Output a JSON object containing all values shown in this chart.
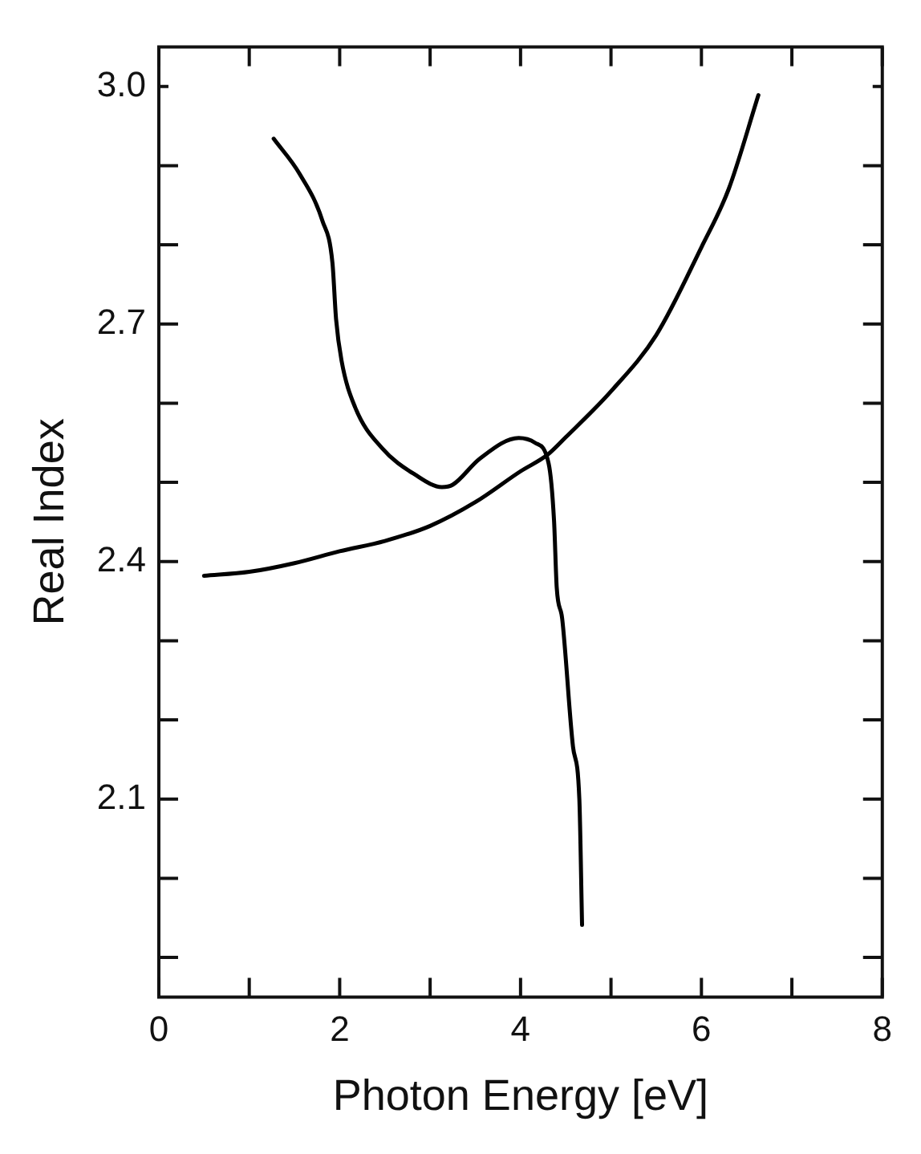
{
  "chart_data": {
    "type": "line",
    "xlabel": "Photon Energy [eV]",
    "ylabel": "Real Index",
    "xlim": [
      0,
      8
    ],
    "ylim": [
      1.85,
      3.05
    ],
    "xticks": [
      0,
      {
        "value": 1,
        "label": null
      },
      2,
      {
        "value": 3,
        "label": null
      },
      4,
      {
        "value": 5,
        "label": null
      },
      6,
      {
        "value": 7,
        "label": null
      },
      8
    ],
    "yticks": [
      {
        "value": 1.9,
        "label": null
      },
      {
        "value": 2.0,
        "label": null
      },
      2.1,
      {
        "value": 2.2,
        "label": null
      },
      {
        "value": 2.3,
        "label": null
      },
      2.4,
      {
        "value": 2.5,
        "label": null
      },
      {
        "value": 2.6,
        "label": null
      },
      2.7,
      {
        "value": 2.8,
        "label": null
      },
      {
        "value": 2.9,
        "label": null
      },
      {
        "value": 3.0,
        "label": "3.0"
      }
    ],
    "grid": false,
    "legend": false,
    "marker": "none",
    "line_style": "solid",
    "series": [
      {
        "color": "#000000",
        "x": [
          0.5,
          1,
          1.5,
          2,
          2.5,
          3,
          3.5,
          4,
          4.3,
          4.5,
          5,
          5.5,
          6,
          6.3,
          6.63
        ],
        "values": [
          2.382,
          2.387,
          2.398,
          2.413,
          2.426,
          2.445,
          2.475,
          2.514,
          2.535,
          2.557,
          2.615,
          2.686,
          2.797,
          2.87,
          2.989
        ]
      },
      {
        "color": "#000000",
        "x": [
          1.27,
          1.56,
          1.81,
          1.92,
          1.96,
          2.02,
          2.17,
          2.47,
          2.83,
          3.13,
          3.25,
          3.55,
          3.98,
          4.16,
          4.31,
          4.37,
          4.4,
          4.46,
          4.58,
          4.65,
          4.68
        ],
        "values": [
          2.934,
          2.889,
          2.83,
          2.777,
          2.706,
          2.654,
          2.595,
          2.543,
          2.51,
          2.494,
          2.497,
          2.53,
          2.556,
          2.55,
          2.524,
          2.452,
          2.367,
          2.328,
          2.166,
          2.1,
          1.941
        ]
      }
    ]
  }
}
